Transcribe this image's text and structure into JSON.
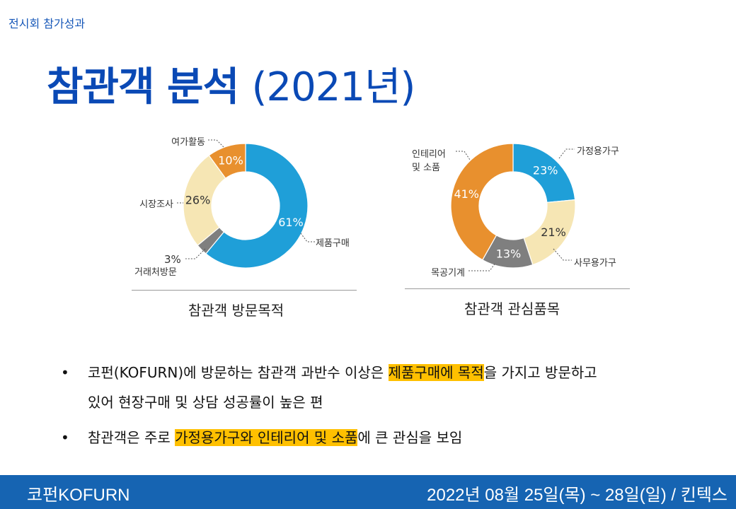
{
  "header": {
    "section": "전시회 참가성과",
    "title_main": "참관객 분석",
    "title_year": "(2021년)"
  },
  "chart_data": [
    {
      "type": "pie",
      "title": "참관객 방문목적",
      "categories": [
        "제품구매",
        "거래처방문",
        "시장조사",
        "여가활동"
      ],
      "values": [
        61,
        3,
        26,
        10
      ],
      "colors": [
        "#1f9fd8",
        "#7f7f7f",
        "#f6e6b4",
        "#e8902e"
      ],
      "value_labels": [
        "61%",
        "3%",
        "26%",
        "10%"
      ],
      "donut": true
    },
    {
      "type": "pie",
      "title": "참관객 관심품목",
      "categories": [
        "가정용가구",
        "사무용가구",
        "목공기계",
        "인테리어 및 소품"
      ],
      "values": [
        23,
        21,
        13,
        41
      ],
      "colors": [
        "#1f9fd8",
        "#f6e6b4",
        "#7f7f7f",
        "#e8902e"
      ],
      "value_labels": [
        "23%",
        "21%",
        "13%",
        "41%"
      ],
      "donut": true
    }
  ],
  "bullets": [
    {
      "pre": "코펀(KOFURN)에 방문하는 참관객 과반수 이상은 ",
      "highlight": "제품구매에 목적",
      "post": "을 가지고 방문하고",
      "line2": "있어 현장구매 및 상담 성공률이 높은 편"
    },
    {
      "pre": "참관객은 주로 ",
      "highlight": "가정용가구와 인테리어 및 소품",
      "post": "에 큰 관심을 보임"
    }
  ],
  "footer": {
    "brand": "코펀KOFURN",
    "date_venue": "2022년 08월 25일(목) ~ 28일(일) /  킨텍스"
  }
}
